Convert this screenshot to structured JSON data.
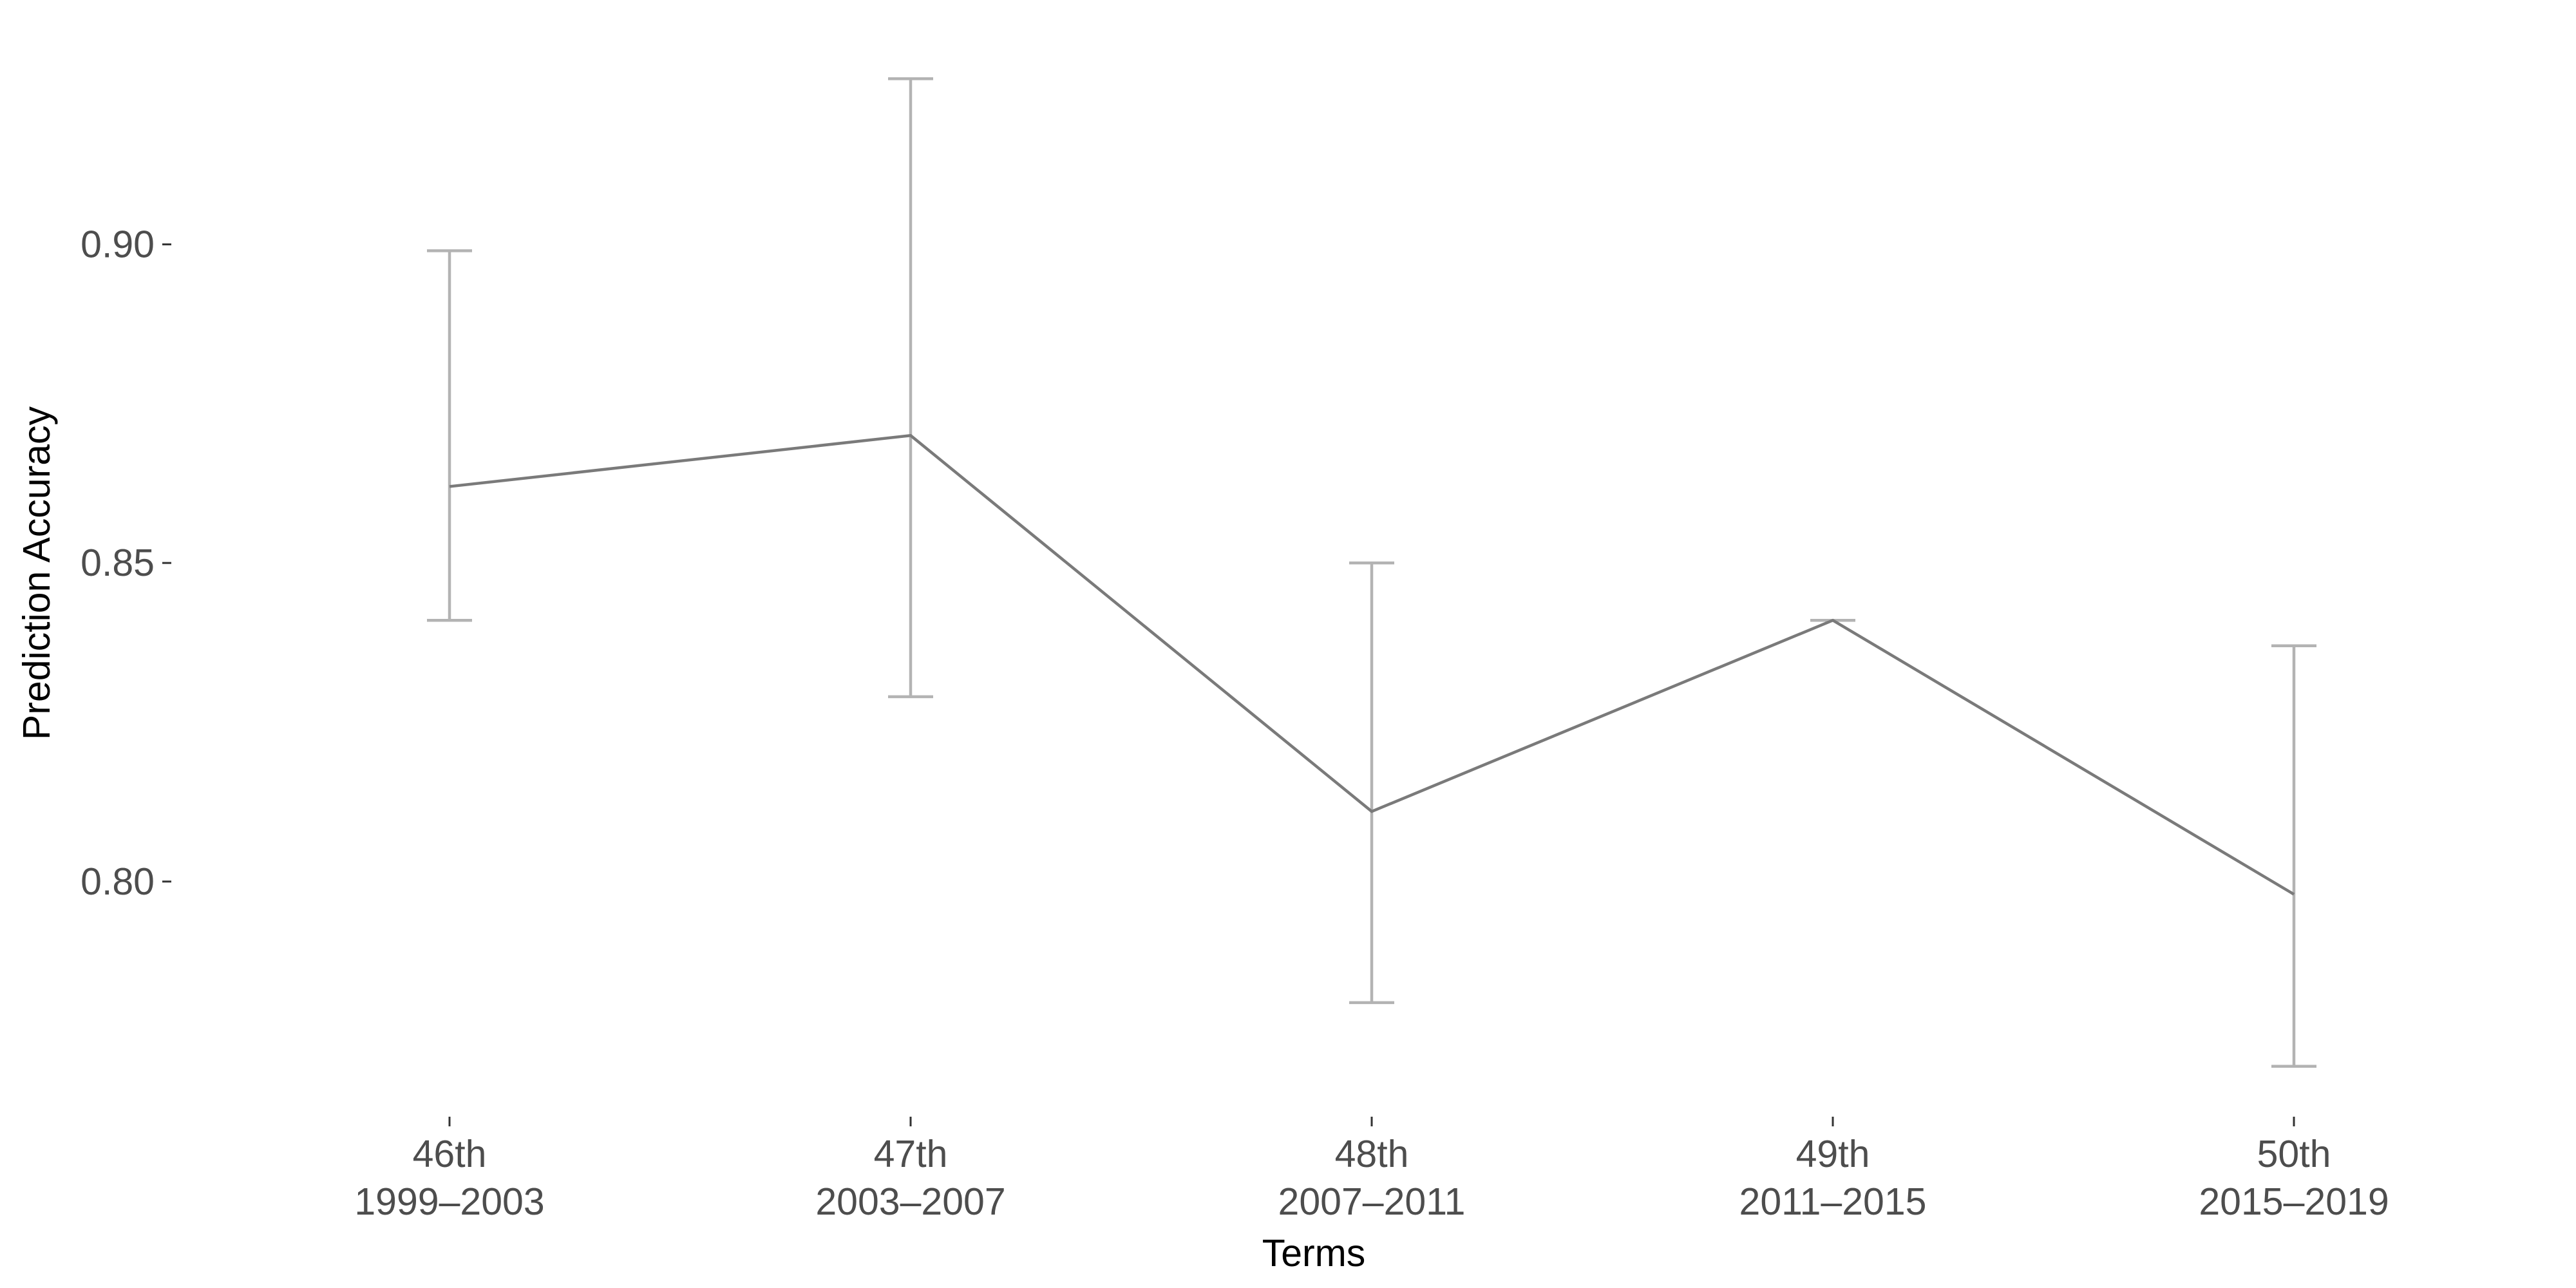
{
  "chart_data": {
    "type": "line",
    "title": "",
    "xlabel": "Terms",
    "ylabel": "Prediction Accuracy",
    "categories": [
      {
        "line1": "46th",
        "line2": "1999–2003"
      },
      {
        "line1": "47th",
        "line2": "2003–2007"
      },
      {
        "line1": "48th",
        "line2": "2007–2011"
      },
      {
        "line1": "49th",
        "line2": "2011–2015"
      },
      {
        "line1": "50th",
        "line2": "2015–2019"
      }
    ],
    "values": [
      0.862,
      0.87,
      0.811,
      0.841,
      0.798
    ],
    "error_bars": [
      {
        "low": 0.841,
        "high": 0.899
      },
      {
        "low": 0.829,
        "high": 0.926
      },
      {
        "low": 0.781,
        "high": 0.85
      },
      {
        "low": 0.841,
        "high": 0.841
      },
      {
        "low": 0.771,
        "high": 0.837
      }
    ],
    "y_ticks": [
      {
        "value": 0.8,
        "label": "0.80"
      },
      {
        "value": 0.85,
        "label": "0.85"
      },
      {
        "value": 0.9,
        "label": "0.90"
      }
    ],
    "ylim": [
      0.7635,
      0.9335
    ],
    "grid": false,
    "legend": "none",
    "colors": {
      "line": "#7a7a7a",
      "errorbar": "#b3b3b3",
      "tick_text": "#4d4d4d",
      "axis_title": "#000000"
    }
  }
}
